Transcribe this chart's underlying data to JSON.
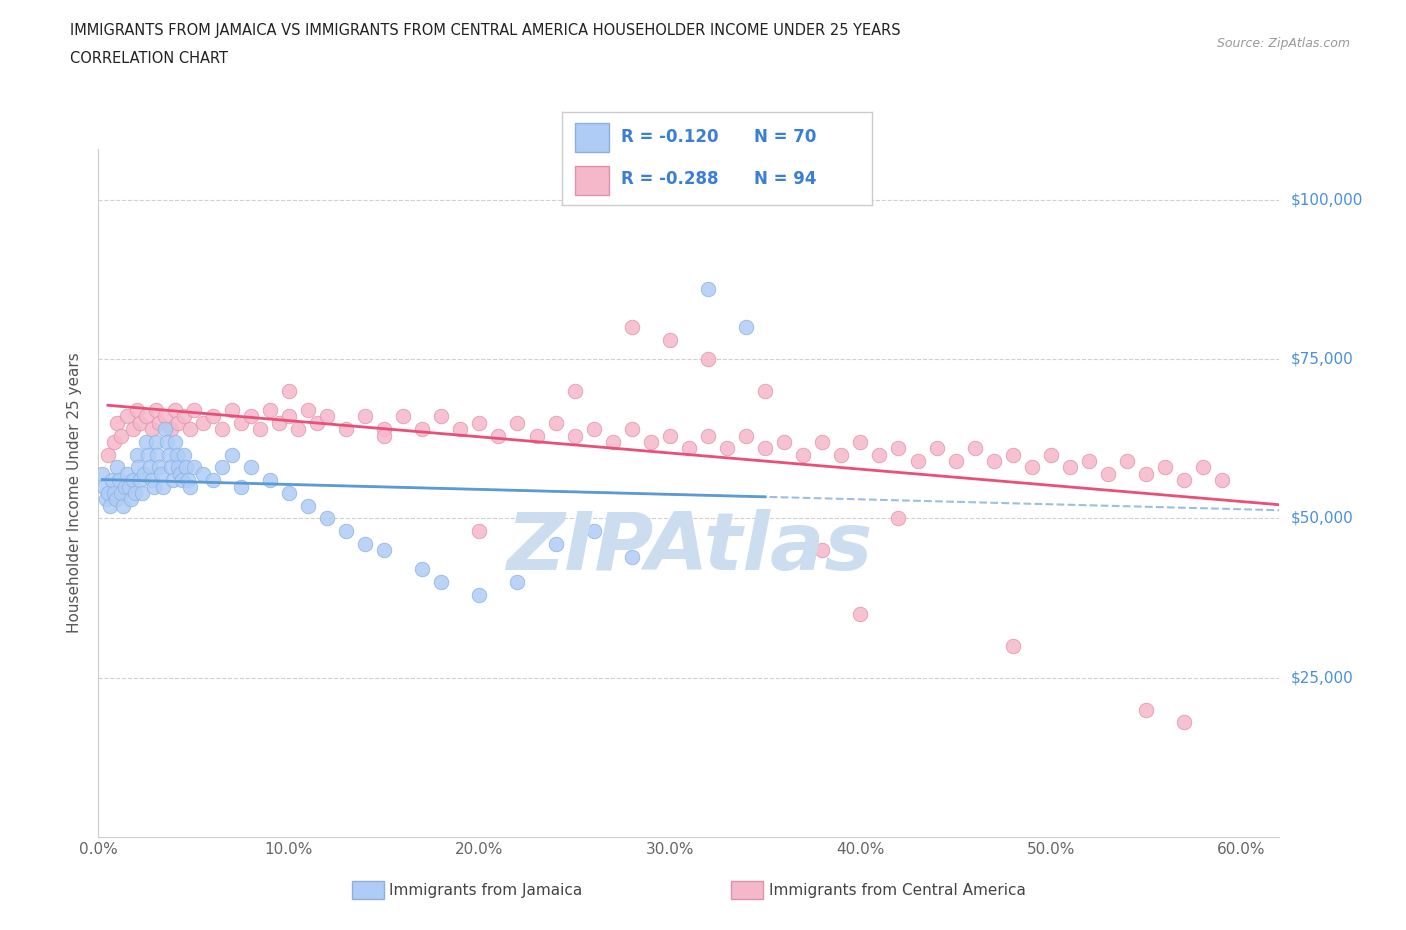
{
  "title_line1": "IMMIGRANTS FROM JAMAICA VS IMMIGRANTS FROM CENTRAL AMERICA HOUSEHOLDER INCOME UNDER 25 YEARS",
  "title_line2": "CORRELATION CHART",
  "source_text": "Source: ZipAtlas.com",
  "ylabel": "Householder Income Under 25 years",
  "xlim": [
    0.0,
    0.62
  ],
  "ylim": [
    0,
    108000
  ],
  "xtick_labels": [
    "0.0%",
    "",
    "10.0%",
    "",
    "20.0%",
    "",
    "30.0%",
    "",
    "40.0%",
    "",
    "50.0%",
    "",
    "60.0%"
  ],
  "xtick_values": [
    0.0,
    0.05,
    0.1,
    0.15,
    0.2,
    0.25,
    0.3,
    0.35,
    0.4,
    0.45,
    0.5,
    0.55,
    0.6
  ],
  "ytick_values": [
    0,
    25000,
    50000,
    75000,
    100000
  ],
  "ytick_labels": [
    "",
    "$25,000",
    "$50,000",
    "$75,000",
    "$100,000"
  ],
  "jamaica_color": "#aeccf5",
  "jamaica_edge_color": "#8ab0e0",
  "central_america_color": "#f5b8cb",
  "central_america_edge_color": "#e090a8",
  "jamaica_R": -0.12,
  "jamaica_N": 70,
  "central_america_R": -0.288,
  "central_america_N": 94,
  "jamaica_line_color": "#5b9bd5",
  "central_america_line_color": "#e8507a",
  "dashed_line_color": "#9bbfe0",
  "hline_color": "#d0d0d0",
  "hline_style": "--",
  "watermark": "ZIPAtlas",
  "watermark_color": "#ccddf0",
  "legend_label_1": "Immigrants from Jamaica",
  "legend_label_2": "Immigrants from Central America",
  "jamaica_x": [
    0.002,
    0.003,
    0.004,
    0.005,
    0.006,
    0.007,
    0.008,
    0.009,
    0.01,
    0.011,
    0.012,
    0.013,
    0.014,
    0.015,
    0.016,
    0.017,
    0.018,
    0.019,
    0.02,
    0.021,
    0.022,
    0.023,
    0.024,
    0.025,
    0.026,
    0.027,
    0.028,
    0.029,
    0.03,
    0.031,
    0.032,
    0.033,
    0.034,
    0.035,
    0.036,
    0.037,
    0.038,
    0.039,
    0.04,
    0.041,
    0.042,
    0.043,
    0.044,
    0.045,
    0.046,
    0.047,
    0.048,
    0.05,
    0.055,
    0.06,
    0.065,
    0.07,
    0.075,
    0.08,
    0.09,
    0.1,
    0.11,
    0.12,
    0.13,
    0.14,
    0.15,
    0.17,
    0.18,
    0.2,
    0.22,
    0.24,
    0.26,
    0.28,
    0.32,
    0.34
  ],
  "jamaica_y": [
    57000,
    55000,
    53000,
    54000,
    52000,
    56000,
    54000,
    53000,
    58000,
    56000,
    54000,
    52000,
    55000,
    57000,
    55000,
    53000,
    56000,
    54000,
    60000,
    58000,
    56000,
    54000,
    57000,
    62000,
    60000,
    58000,
    56000,
    55000,
    62000,
    60000,
    58000,
    57000,
    55000,
    64000,
    62000,
    60000,
    58000,
    56000,
    62000,
    60000,
    58000,
    57000,
    56000,
    60000,
    58000,
    56000,
    55000,
    58000,
    57000,
    56000,
    58000,
    60000,
    55000,
    58000,
    56000,
    54000,
    52000,
    50000,
    48000,
    46000,
    45000,
    42000,
    40000,
    38000,
    40000,
    46000,
    48000,
    44000,
    86000,
    80000
  ],
  "central_america_x": [
    0.005,
    0.008,
    0.01,
    0.012,
    0.015,
    0.018,
    0.02,
    0.022,
    0.025,
    0.028,
    0.03,
    0.032,
    0.035,
    0.038,
    0.04,
    0.042,
    0.045,
    0.048,
    0.05,
    0.055,
    0.06,
    0.065,
    0.07,
    0.075,
    0.08,
    0.085,
    0.09,
    0.095,
    0.1,
    0.105,
    0.11,
    0.115,
    0.12,
    0.13,
    0.14,
    0.15,
    0.16,
    0.17,
    0.18,
    0.19,
    0.2,
    0.21,
    0.22,
    0.23,
    0.24,
    0.25,
    0.26,
    0.27,
    0.28,
    0.29,
    0.3,
    0.31,
    0.32,
    0.33,
    0.34,
    0.35,
    0.36,
    0.37,
    0.38,
    0.39,
    0.4,
    0.41,
    0.42,
    0.43,
    0.44,
    0.45,
    0.46,
    0.47,
    0.48,
    0.49,
    0.5,
    0.51,
    0.52,
    0.53,
    0.54,
    0.55,
    0.56,
    0.57,
    0.58,
    0.59,
    0.3,
    0.35,
    0.4,
    0.48,
    0.55,
    0.57,
    0.42,
    0.38,
    0.32,
    0.28,
    0.25,
    0.2,
    0.15,
    0.1
  ],
  "central_america_y": [
    60000,
    62000,
    65000,
    63000,
    66000,
    64000,
    67000,
    65000,
    66000,
    64000,
    67000,
    65000,
    66000,
    64000,
    67000,
    65000,
    66000,
    64000,
    67000,
    65000,
    66000,
    64000,
    67000,
    65000,
    66000,
    64000,
    67000,
    65000,
    66000,
    64000,
    67000,
    65000,
    66000,
    64000,
    66000,
    64000,
    66000,
    64000,
    66000,
    64000,
    65000,
    63000,
    65000,
    63000,
    65000,
    63000,
    64000,
    62000,
    64000,
    62000,
    63000,
    61000,
    63000,
    61000,
    63000,
    61000,
    62000,
    60000,
    62000,
    60000,
    62000,
    60000,
    61000,
    59000,
    61000,
    59000,
    61000,
    59000,
    60000,
    58000,
    60000,
    58000,
    59000,
    57000,
    59000,
    57000,
    58000,
    56000,
    58000,
    56000,
    78000,
    70000,
    35000,
    30000,
    20000,
    18000,
    50000,
    45000,
    75000,
    80000,
    70000,
    48000,
    63000,
    70000
  ]
}
